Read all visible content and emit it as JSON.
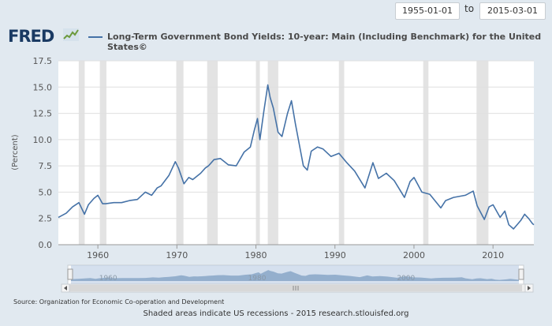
{
  "controls": {
    "start_date": "1955-01-01",
    "to_label": "to",
    "end_date": "2015-03-01"
  },
  "brand": {
    "logo_text": "FRED"
  },
  "chart_data": {
    "type": "line",
    "title": "Long-Term Government Bond Yields: 10-year: Main (Including Benchmark) for the United States©",
    "ylabel": "(Percent)",
    "xlabel": "",
    "xlim": [
      1955.0,
      2015.17
    ],
    "ylim": [
      0,
      17.5
    ],
    "y_ticks": [
      0.0,
      2.5,
      5.0,
      7.5,
      10.0,
      12.5,
      15.0,
      17.5
    ],
    "y_tick_labels": [
      "0.0",
      "2.5",
      "5.0",
      "7.5",
      "10.0",
      "12.5",
      "15.0",
      "17.5"
    ],
    "x_ticks": [
      1960,
      1970,
      1980,
      1990,
      2000,
      2010
    ],
    "x_tick_labels": [
      "1960",
      "1970",
      "1980",
      "1990",
      "2000",
      "2010"
    ],
    "grid": true,
    "series": [
      {
        "name": "Long-Term Government Bond Yields: 10-year: Main (Including Benchmark) for the United States©",
        "color": "#4572a7",
        "x": [
          1955.0,
          1956.0,
          1956.8,
          1957.6,
          1958.3,
          1958.8,
          1959.5,
          1960.0,
          1960.6,
          1961.0,
          1962.0,
          1963.0,
          1964.0,
          1965.0,
          1966.0,
          1966.8,
          1967.5,
          1968.0,
          1969.0,
          1969.8,
          1970.2,
          1970.9,
          1971.5,
          1972.0,
          1973.0,
          1973.6,
          1974.0,
          1974.7,
          1975.5,
          1976.5,
          1977.5,
          1978.5,
          1979.3,
          1979.8,
          1980.2,
          1980.5,
          1981.0,
          1981.5,
          1981.8,
          1982.2,
          1982.8,
          1983.3,
          1984.0,
          1984.5,
          1985.0,
          1986.0,
          1986.5,
          1987.0,
          1987.8,
          1988.5,
          1989.5,
          1990.5,
          1991.5,
          1992.5,
          1993.8,
          1994.8,
          1995.5,
          1996.5,
          1997.5,
          1998.8,
          1999.5,
          2000.0,
          2001.0,
          2002.0,
          2003.4,
          2004.0,
          2005.0,
          2006.5,
          2007.5,
          2008.0,
          2008.9,
          2009.5,
          2010.0,
          2010.9,
          2011.5,
          2012.0,
          2012.6,
          2013.5,
          2014.0,
          2014.5,
          2015.0,
          2015.17
        ],
        "y": [
          2.6,
          3.0,
          3.6,
          4.0,
          2.9,
          3.8,
          4.4,
          4.7,
          3.9,
          3.9,
          4.0,
          4.0,
          4.2,
          4.3,
          5.0,
          4.7,
          5.4,
          5.6,
          6.6,
          7.9,
          7.3,
          5.8,
          6.4,
          6.2,
          6.8,
          7.3,
          7.5,
          8.1,
          8.2,
          7.6,
          7.5,
          8.8,
          9.3,
          10.9,
          12.0,
          10.0,
          12.7,
          15.2,
          14.0,
          13.0,
          10.7,
          10.3,
          12.5,
          13.7,
          11.5,
          7.5,
          7.1,
          8.9,
          9.3,
          9.1,
          8.4,
          8.7,
          7.8,
          7.0,
          5.4,
          7.8,
          6.3,
          6.8,
          6.1,
          4.5,
          6.0,
          6.4,
          5.0,
          4.8,
          3.5,
          4.2,
          4.5,
          4.7,
          5.1,
          3.7,
          2.4,
          3.6,
          3.8,
          2.6,
          3.2,
          1.9,
          1.5,
          2.3,
          2.9,
          2.5,
          2.0,
          1.9
        ]
      }
    ],
    "recessions": [
      [
        1957.58,
        1958.33
      ],
      [
        1960.25,
        1961.08
      ],
      [
        1969.92,
        1970.83
      ],
      [
        1973.83,
        1975.17
      ],
      [
        1980.0,
        1980.5
      ],
      [
        1981.5,
        1982.83
      ],
      [
        1990.5,
        1991.17
      ],
      [
        2001.17,
        2001.83
      ],
      [
        2007.92,
        2009.42
      ]
    ],
    "navigator": {
      "tick_labels": [
        "1960",
        "1980",
        "2000"
      ],
      "ticks": [
        1960,
        1980,
        2000
      ]
    },
    "colors": {
      "line": "#4572a7",
      "recession": "#e3e3e3",
      "grid": "#dfdfdf",
      "frame": "#e1e9f0"
    }
  },
  "footer": {
    "source": "Source: Organization for Economic Co-operation and Development",
    "note": "Shaded areas indicate US recessions - 2015 research.stlouisfed.org"
  }
}
